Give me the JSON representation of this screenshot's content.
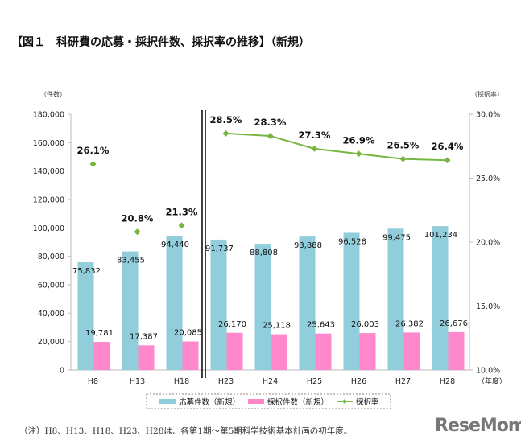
{
  "title": "【図１　科研費の応募・採択件数、採択率の推移】（新規）",
  "note": "（注）H8、H13、H18、H23、H28は、各第1期～第5期科学技術基本計画の初年度。",
  "logo": "ReseMom",
  "chart_data": {
    "type": "bar",
    "categories": [
      "H8",
      "H13",
      "H18",
      "H23",
      "H24",
      "H25",
      "H26",
      "H27",
      "H28"
    ],
    "xlabel": "（年度）",
    "ylabel": "（件数）",
    "y2label": "（採択率）",
    "ylim": [
      0,
      180000
    ],
    "y2lim": [
      0.1,
      0.3
    ],
    "yticks": [
      "0",
      "20,000",
      "40,000",
      "60,000",
      "80,000",
      "100,000",
      "120,000",
      "140,000",
      "160,000",
      "180,000"
    ],
    "y2ticks": [
      "10.0%",
      "15.0%",
      "20.0%",
      "25.0%",
      "30.0%"
    ],
    "grid": false,
    "legend_placement": "bottom",
    "break_after": "H18",
    "series": [
      {
        "name": "応募件数（新規）",
        "type": "bar",
        "color": "#92CDDC",
        "values": [
          75832,
          83455,
          94440,
          91737,
          88808,
          93888,
          96528,
          99475,
          101234
        ],
        "labels": [
          "75,832",
          "83,455",
          "94,440",
          "91,737",
          "88,808",
          "93,888",
          "96,528",
          "99,475",
          "101,234"
        ]
      },
      {
        "name": "採択件数（新規）",
        "type": "bar",
        "color": "#FF88CC",
        "values": [
          19781,
          17387,
          20085,
          26170,
          25118,
          25643,
          26003,
          26382,
          26676
        ],
        "labels": [
          "19,781",
          "17,387",
          "20,085",
          "26,170",
          "25,118",
          "25,643",
          "26,003",
          "26,382",
          "26,676"
        ]
      },
      {
        "name": "採択率",
        "type": "line",
        "axis": "right",
        "color": "#77B643",
        "values": [
          26.1,
          20.8,
          21.3,
          28.5,
          28.3,
          27.3,
          26.9,
          26.5,
          26.4
        ],
        "labels": [
          "26.1%",
          "20.8%",
          "21.3%",
          "28.5%",
          "28.3%",
          "27.3%",
          "26.9%",
          "26.5%",
          "26.4%"
        ]
      }
    ]
  }
}
